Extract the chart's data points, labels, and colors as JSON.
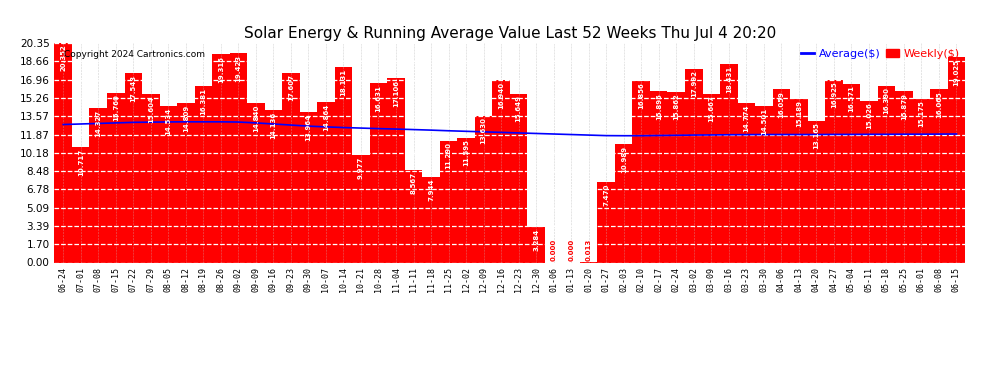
{
  "title": "Solar Energy & Running Average Value Last 52 Weeks Thu Jul 4 20:20",
  "copyright": "Copyright 2024 Cartronics.com",
  "legend_avg": "Average($)",
  "legend_weekly": "Weekly($)",
  "bar_color": "#ff0000",
  "avg_line_color": "#0000ff",
  "background_color": "#ffffff",
  "plot_bg_color": "#ffffff",
  "ylim": [
    0,
    20.35
  ],
  "yticks": [
    0.0,
    1.7,
    3.39,
    5.09,
    6.78,
    8.48,
    10.18,
    11.87,
    13.57,
    15.26,
    16.96,
    18.66,
    20.35
  ],
  "categories": [
    "06-24",
    "07-01",
    "07-08",
    "07-15",
    "07-22",
    "07-29",
    "08-05",
    "08-12",
    "08-19",
    "08-26",
    "09-02",
    "09-09",
    "09-16",
    "09-23",
    "09-30",
    "10-07",
    "10-14",
    "10-21",
    "10-28",
    "11-04",
    "11-11",
    "11-18",
    "11-25",
    "12-02",
    "12-09",
    "12-16",
    "12-23",
    "12-30",
    "01-06",
    "01-13",
    "01-20",
    "01-27",
    "02-03",
    "02-10",
    "02-17",
    "02-24",
    "03-02",
    "03-09",
    "03-16",
    "03-23",
    "03-30",
    "04-06",
    "04-13",
    "04-20",
    "04-27",
    "05-04",
    "05-11",
    "05-18",
    "05-25",
    "06-01",
    "06-08",
    "06-15"
  ],
  "weekly_values": [
    20.352,
    10.717,
    14.327,
    15.76,
    17.543,
    15.604,
    14.534,
    14.809,
    16.381,
    19.315,
    19.423,
    14.84,
    14.136,
    17.607,
    13.964,
    14.864,
    18.131,
    9.977,
    16.631,
    17.106,
    8.567,
    7.944,
    11.29,
    11.595,
    13.63,
    16.94,
    15.649,
    3.284,
    0.0,
    0.0,
    0.013,
    7.47,
    10.989,
    16.856,
    15.895,
    15.862,
    17.992,
    15.667,
    18.431,
    14.774,
    14.501,
    16.059,
    15.189,
    13.165,
    16.925,
    16.571,
    15.026,
    16.39,
    15.879,
    15.175,
    16.065,
    19.025
  ],
  "avg_values": [
    12.8,
    12.85,
    12.9,
    12.95,
    13.0,
    13.02,
    13.04,
    13.05,
    13.05,
    13.05,
    13.03,
    12.95,
    12.85,
    12.75,
    12.65,
    12.58,
    12.52,
    12.47,
    12.42,
    12.38,
    12.33,
    12.28,
    12.22,
    12.17,
    12.12,
    12.07,
    12.02,
    11.97,
    11.92,
    11.87,
    11.82,
    11.77,
    11.76,
    11.76,
    11.78,
    11.8,
    11.82,
    11.83,
    11.85,
    11.86,
    11.87,
    11.87,
    11.87,
    11.87,
    11.88,
    11.88,
    11.89,
    11.89,
    11.9,
    11.9,
    11.91,
    11.92
  ]
}
